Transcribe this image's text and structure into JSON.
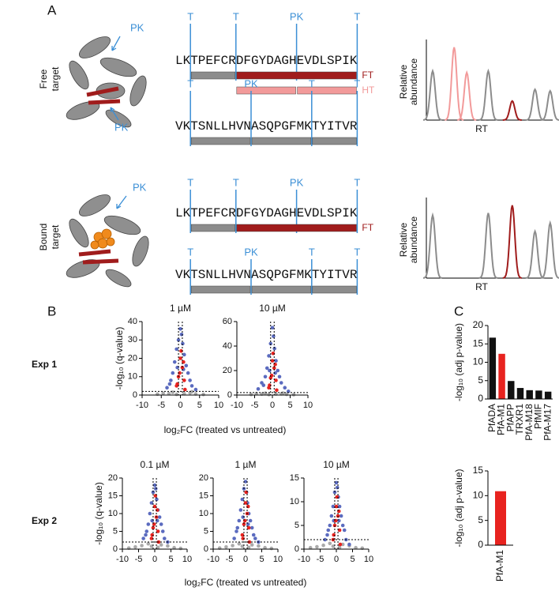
{
  "panel_a": {
    "label": "A",
    "rows": [
      {
        "label_lines": [
          "Free",
          "target"
        ],
        "pk_labels": [
          "PK",
          "PK"
        ],
        "peptides": [
          {
            "sequence": "LKTPEFCRDFGYDAGHEVDLSPIK",
            "cut_labels": [
              "T",
              "T",
              "PK",
              "T"
            ],
            "tags": [
              "FT",
              "HT"
            ]
          },
          {
            "sequence": "VKTSNLLHVNASQPGFMKTYITVR",
            "cut_labels": [
              "T",
              "PK",
              "T",
              "T"
            ]
          }
        ],
        "chromatogram": {
          "y_label_lines": [
            "Relative",
            "abundance"
          ],
          "x_label": "RT",
          "xlim": [
            0,
            100
          ],
          "ylim": [
            0,
            100
          ],
          "peaks": [
            {
              "rt": 5,
              "height": 64,
              "color": "#8c8c8c"
            },
            {
              "rt": 22,
              "height": 95,
              "color": "#f29a9a"
            },
            {
              "rt": 32,
              "height": 62,
              "color": "#f29a9a"
            },
            {
              "rt": 49,
              "height": 64,
              "color": "#8c8c8c"
            },
            {
              "rt": 68,
              "height": 25,
              "color": "#a01c1c"
            },
            {
              "rt": 86,
              "height": 40,
              "color": "#8c8c8c"
            },
            {
              "rt": 98,
              "height": 38,
              "color": "#8c8c8c"
            }
          ]
        }
      },
      {
        "label_lines": [
          "Bound",
          "target"
        ],
        "pk_labels": [
          "PK"
        ],
        "peptides": [
          {
            "sequence": "LKTPEFCRDFGYDAGHEVDLSPIK",
            "cut_labels": [
              "T",
              "T",
              "PK",
              "T"
            ],
            "tags": [
              "FT"
            ]
          },
          {
            "sequence": "VKTSNLLHVNASQPGFMKTYITVR",
            "cut_labels": [
              "T",
              "PK",
              "T",
              "T"
            ]
          }
        ],
        "chromatogram": {
          "y_label_lines": [
            "Relative",
            "abundance"
          ],
          "x_label": "RT",
          "xlim": [
            0,
            100
          ],
          "ylim": [
            0,
            100
          ],
          "peaks": [
            {
              "rt": 5,
              "height": 82,
              "color": "#8c8c8c"
            },
            {
              "rt": 49,
              "height": 85,
              "color": "#8c8c8c"
            },
            {
              "rt": 68,
              "height": 95,
              "color": "#a01c1c"
            },
            {
              "rt": 86,
              "height": 61,
              "color": "#8c8c8c"
            },
            {
              "rt": 98,
              "height": 72,
              "color": "#8c8c8c"
            }
          ]
        }
      }
    ]
  },
  "panel_b": {
    "label": "B",
    "rows": [
      {
        "label": "Exp 1",
        "y_label": "-log₁₀ (q-value)",
        "x_label": "log₂FC (treated vs untreated)",
        "charts": [
          {
            "type": "scatter",
            "title": "1 µM",
            "xlim": [
              -10,
              10
            ],
            "xticks": [
              -10,
              -5,
              0,
              5,
              10
            ],
            "ylim": [
              0,
              40
            ],
            "yticks": [
              0,
              10,
              20,
              30,
              40
            ],
            "thresholds": {
              "x": [
                -0.5,
                0.5
              ],
              "y": 2
            },
            "series": [
              {
                "color": "#aaaaaa",
                "x": [
                  -6,
                  -4.5,
                  -3,
                  -2,
                  2.5,
                  4,
                  6,
                  -1,
                  1,
                  3
                ],
                "values": [
                  0.5,
                  1,
                  0.8,
                  1.5,
                  1.2,
                  0.6,
                  0.3,
                  0.4,
                  0.7,
                  1.8
                ]
              },
              {
                "color": "#5b6bbf",
                "x": [
                  -3.5,
                  -2.5,
                  -2,
                  -1.5,
                  -1,
                  -0.5,
                  0,
                  0.3,
                  0.6,
                  1,
                  1.5,
                  2,
                  2.5,
                  3,
                  4,
                  -0.8,
                  0.8,
                  -2.8
                ],
                "values": [
                  4,
                  8,
                  12,
                  18,
                  25,
                  30,
                  36,
                  33,
                  28,
                  22,
                  16,
                  12,
                  8,
                  5,
                  3,
                  15,
                  14,
                  6
                ]
              },
              {
                "color": "#e8231f",
                "x": [
                  -1,
                  -0.5,
                  0,
                  0.5,
                  1,
                  0.2,
                  -0.2,
                  0.8,
                  -0.8,
                  1.2
                ],
                "values": [
                  5,
                  10,
                  20,
                  15,
                  8,
                  24,
                  12,
                  18,
                  6,
                  3
                ]
              }
            ]
          },
          {
            "type": "scatter",
            "title": "10 µM",
            "xlim": [
              -10,
              10
            ],
            "xticks": [
              -10,
              -5,
              0,
              5,
              10
            ],
            "ylim": [
              0,
              60
            ],
            "yticks": [
              0,
              20,
              40,
              60
            ],
            "thresholds": {
              "x": [
                -0.5,
                0.5
              ],
              "y": 2
            },
            "series": [
              {
                "color": "#aaaaaa",
                "x": [
                  -6,
                  -4.5,
                  -3,
                  -2,
                  2.5,
                  4,
                  6,
                  -1,
                  1,
                  3
                ],
                "values": [
                  0.5,
                  1.2,
                  0.8,
                  1.5,
                  1,
                  0.6,
                  0.3,
                  0.4,
                  0.9,
                  1.6
                ]
              },
              {
                "color": "#5b6bbf",
                "x": [
                  -4,
                  -3,
                  -2,
                  -1.5,
                  -1,
                  -0.5,
                  0,
                  0.3,
                  0.6,
                  1,
                  1.5,
                  2,
                  2.5,
                  3.5,
                  4.5,
                  -0.8,
                  0.8,
                  -2.5
                ],
                "values": [
                  5,
                  10,
                  15,
                  22,
                  32,
                  42,
                  55,
                  48,
                  38,
                  28,
                  20,
                  15,
                  10,
                  6,
                  3,
                  20,
                  18,
                  8
                ]
              },
              {
                "color": "#e8231f",
                "x": [
                  -1,
                  -0.5,
                  0,
                  0.5,
                  1,
                  0.2,
                  -0.2,
                  0.8,
                  -0.8,
                  1.2
                ],
                "values": [
                  6,
                  14,
                  28,
                  22,
                  12,
                  34,
                  16,
                  25,
                  8,
                  4
                ]
              }
            ]
          }
        ]
      },
      {
        "label": "Exp 2",
        "y_label": "-log₁₀ (q-value)",
        "x_label": "log₂FC (treated vs untreated)",
        "charts": [
          {
            "type": "scatter",
            "title": "0.1 µM",
            "xlim": [
              -10,
              10
            ],
            "xticks": [
              -10,
              -5,
              0,
              5,
              10
            ],
            "ylim": [
              0,
              20
            ],
            "yticks": [
              0,
              5,
              10,
              15,
              20
            ],
            "thresholds": {
              "x": [
                -0.5,
                0.5
              ],
              "y": 2
            },
            "series": [
              {
                "color": "#aaaaaa",
                "x": [
                  -8,
                  -6,
                  -4,
                  -2,
                  -1,
                  1,
                  2,
                  4,
                  6,
                  8
                ],
                "values": [
                  0.3,
                  0.6,
                  1,
                  1.5,
                  0.8,
                  0.5,
                  1.2,
                  0.9,
                  0.4,
                  0.2
                ]
              },
              {
                "color": "#5b6bbf",
                "x": [
                  -3.5,
                  -2.5,
                  -2,
                  -1.5,
                  -1,
                  -0.5,
                  0,
                  0.3,
                  0.6,
                  1,
                  1.5,
                  2,
                  2.5,
                  3,
                  4,
                  -0.8,
                  0.8,
                  -2.8
                ],
                "values": [
                  3,
                  5,
                  7,
                  10,
                  13,
                  16,
                  18,
                  17,
                  14,
                  11,
                  9,
                  7,
                  5,
                  3,
                  2,
                  8,
                  8,
                  4
                ]
              },
              {
                "color": "#e8231f",
                "x": [
                  -1,
                  -0.5,
                  0,
                  0.5,
                  1,
                  0.2,
                  -0.2,
                  0.8,
                  -0.8,
                  1.2
                ],
                "values": [
                  3,
                  6,
                  12,
                  9,
                  5,
                  15,
                  7,
                  11,
                  4,
                  2
                ]
              }
            ]
          },
          {
            "type": "scatter",
            "title": "1 µM",
            "xlim": [
              -10,
              10
            ],
            "xticks": [
              -10,
              -5,
              0,
              5,
              10
            ],
            "ylim": [
              0,
              20
            ],
            "yticks": [
              0,
              5,
              10,
              15,
              20
            ],
            "thresholds": {
              "x": [
                -0.5,
                0.5
              ],
              "y": 2
            },
            "series": [
              {
                "color": "#aaaaaa",
                "x": [
                  -8,
                  -6,
                  -4,
                  -2,
                  -1,
                  1,
                  2,
                  4,
                  6,
                  8
                ],
                "values": [
                  0.3,
                  0.6,
                  1,
                  1.5,
                  0.8,
                  0.5,
                  1.2,
                  0.9,
                  0.4,
                  0.2
                ]
              },
              {
                "color": "#5b6bbf",
                "x": [
                  -3.5,
                  -2.5,
                  -2,
                  -1.5,
                  -1,
                  -0.5,
                  0,
                  0.3,
                  0.6,
                  1,
                  1.5,
                  2,
                  2.5,
                  3,
                  4,
                  -0.8,
                  0.8,
                  -2.8
                ],
                "values": [
                  3,
                  6,
                  8,
                  11,
                  14,
                  17,
                  19,
                  16,
                  13,
                  10,
                  8,
                  6,
                  4,
                  3,
                  2,
                  9,
                  7,
                  5
                ]
              },
              {
                "color": "#e8231f",
                "x": [
                  -1,
                  -0.5,
                  0,
                  0.5,
                  1,
                  0.2,
                  -0.2,
                  0.8,
                  -0.8,
                  1.2
                ],
                "values": [
                  4,
                  7,
                  13,
                  10,
                  6,
                  16,
                  8,
                  12,
                  3,
                  2
                ]
              }
            ]
          },
          {
            "type": "scatter",
            "title": "10 µM",
            "xlim": [
              -10,
              10
            ],
            "xticks": [
              -10,
              -5,
              0,
              5,
              10
            ],
            "ylim": [
              0,
              15
            ],
            "yticks": [
              0,
              5,
              10,
              15
            ],
            "thresholds": {
              "x": [
                -0.5,
                0.5
              ],
              "y": 2
            },
            "series": [
              {
                "color": "#aaaaaa",
                "x": [
                  -8,
                  -6,
                  -4,
                  -2,
                  -1,
                  1,
                  2,
                  4,
                  6,
                  8
                ],
                "values": [
                  0.3,
                  0.5,
                  0.8,
                  1.2,
                  0.6,
                  0.4,
                  1,
                  0.7,
                  0.3,
                  0.2
                ]
              },
              {
                "color": "#5b6bbf",
                "x": [
                  -3.5,
                  -2.5,
                  -2,
                  -1.5,
                  -1,
                  -0.5,
                  0,
                  0.3,
                  0.6,
                  1,
                  1.5,
                  2,
                  2.5,
                  3,
                  4,
                  -0.8,
                  0.8,
                  -2.8
                ],
                "values": [
                  2,
                  4,
                  5,
                  7,
                  9,
                  12,
                  14,
                  13,
                  11,
                  9,
                  7,
                  5,
                  4,
                  2,
                  1,
                  6,
                  6,
                  3
                ]
              },
              {
                "color": "#e8231f",
                "x": [
                  -1,
                  -0.5,
                  0,
                  0.5,
                  1,
                  0.2,
                  -0.2,
                  0.8,
                  -0.8,
                  1.2
                ],
                "values": [
                  2,
                  5,
                  9,
                  7,
                  4,
                  11,
                  6,
                  8,
                  3,
                  1
                ]
              }
            ]
          }
        ]
      }
    ]
  },
  "panel_c": {
    "label": "C",
    "charts": [
      {
        "type": "bar",
        "y_label": "-log₁₀ (adj p-value)",
        "categories": [
          "PfADA",
          "PfA-M1",
          "PfAPP",
          "TRXR1",
          "PfA-M18",
          "PfMIF",
          "PfA-M17"
        ],
        "values": [
          16.7,
          12.3,
          4.9,
          3.0,
          2.4,
          2.3,
          2.0
        ],
        "colors": [
          "#111111",
          "#e8231f",
          "#111111",
          "#111111",
          "#111111",
          "#111111",
          "#111111"
        ],
        "ylim": [
          0,
          20
        ],
        "yticks": [
          0,
          5,
          10,
          15,
          20
        ]
      },
      {
        "type": "bar",
        "y_label": "-log₁₀ (adj p-value)",
        "categories": [
          "PfA-M1"
        ],
        "values": [
          10.9
        ],
        "colors": [
          "#e8231f"
        ],
        "ylim": [
          0,
          15
        ],
        "yticks": [
          0,
          5,
          10,
          15
        ]
      }
    ]
  }
}
